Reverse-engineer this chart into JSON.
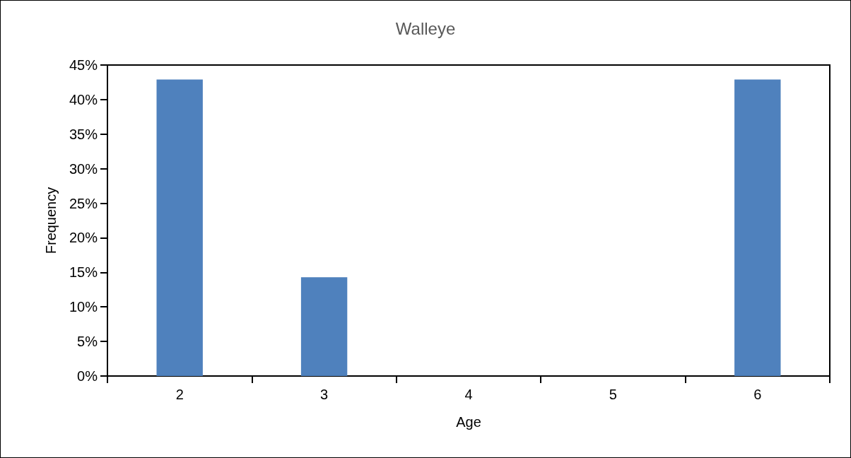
{
  "chart_data": {
    "type": "bar",
    "title": "Walleye",
    "xlabel": "Age",
    "ylabel": "Frequency",
    "categories": [
      "2",
      "3",
      "4",
      "5",
      "6"
    ],
    "values": [
      42.9,
      14.3,
      0,
      0,
      42.9
    ],
    "color": "#4f81bd",
    "ylim": [
      0,
      45
    ],
    "yticks": [
      {
        "value": 0,
        "label": "0%"
      },
      {
        "value": 5,
        "label": "5%"
      },
      {
        "value": 10,
        "label": "10%"
      },
      {
        "value": 15,
        "label": "15%"
      },
      {
        "value": 20,
        "label": "20%"
      },
      {
        "value": 25,
        "label": "25%"
      },
      {
        "value": 30,
        "label": "30%"
      },
      {
        "value": 35,
        "label": "35%"
      },
      {
        "value": 40,
        "label": "40%"
      },
      {
        "value": 45,
        "label": "45%"
      }
    ],
    "grid": false
  }
}
